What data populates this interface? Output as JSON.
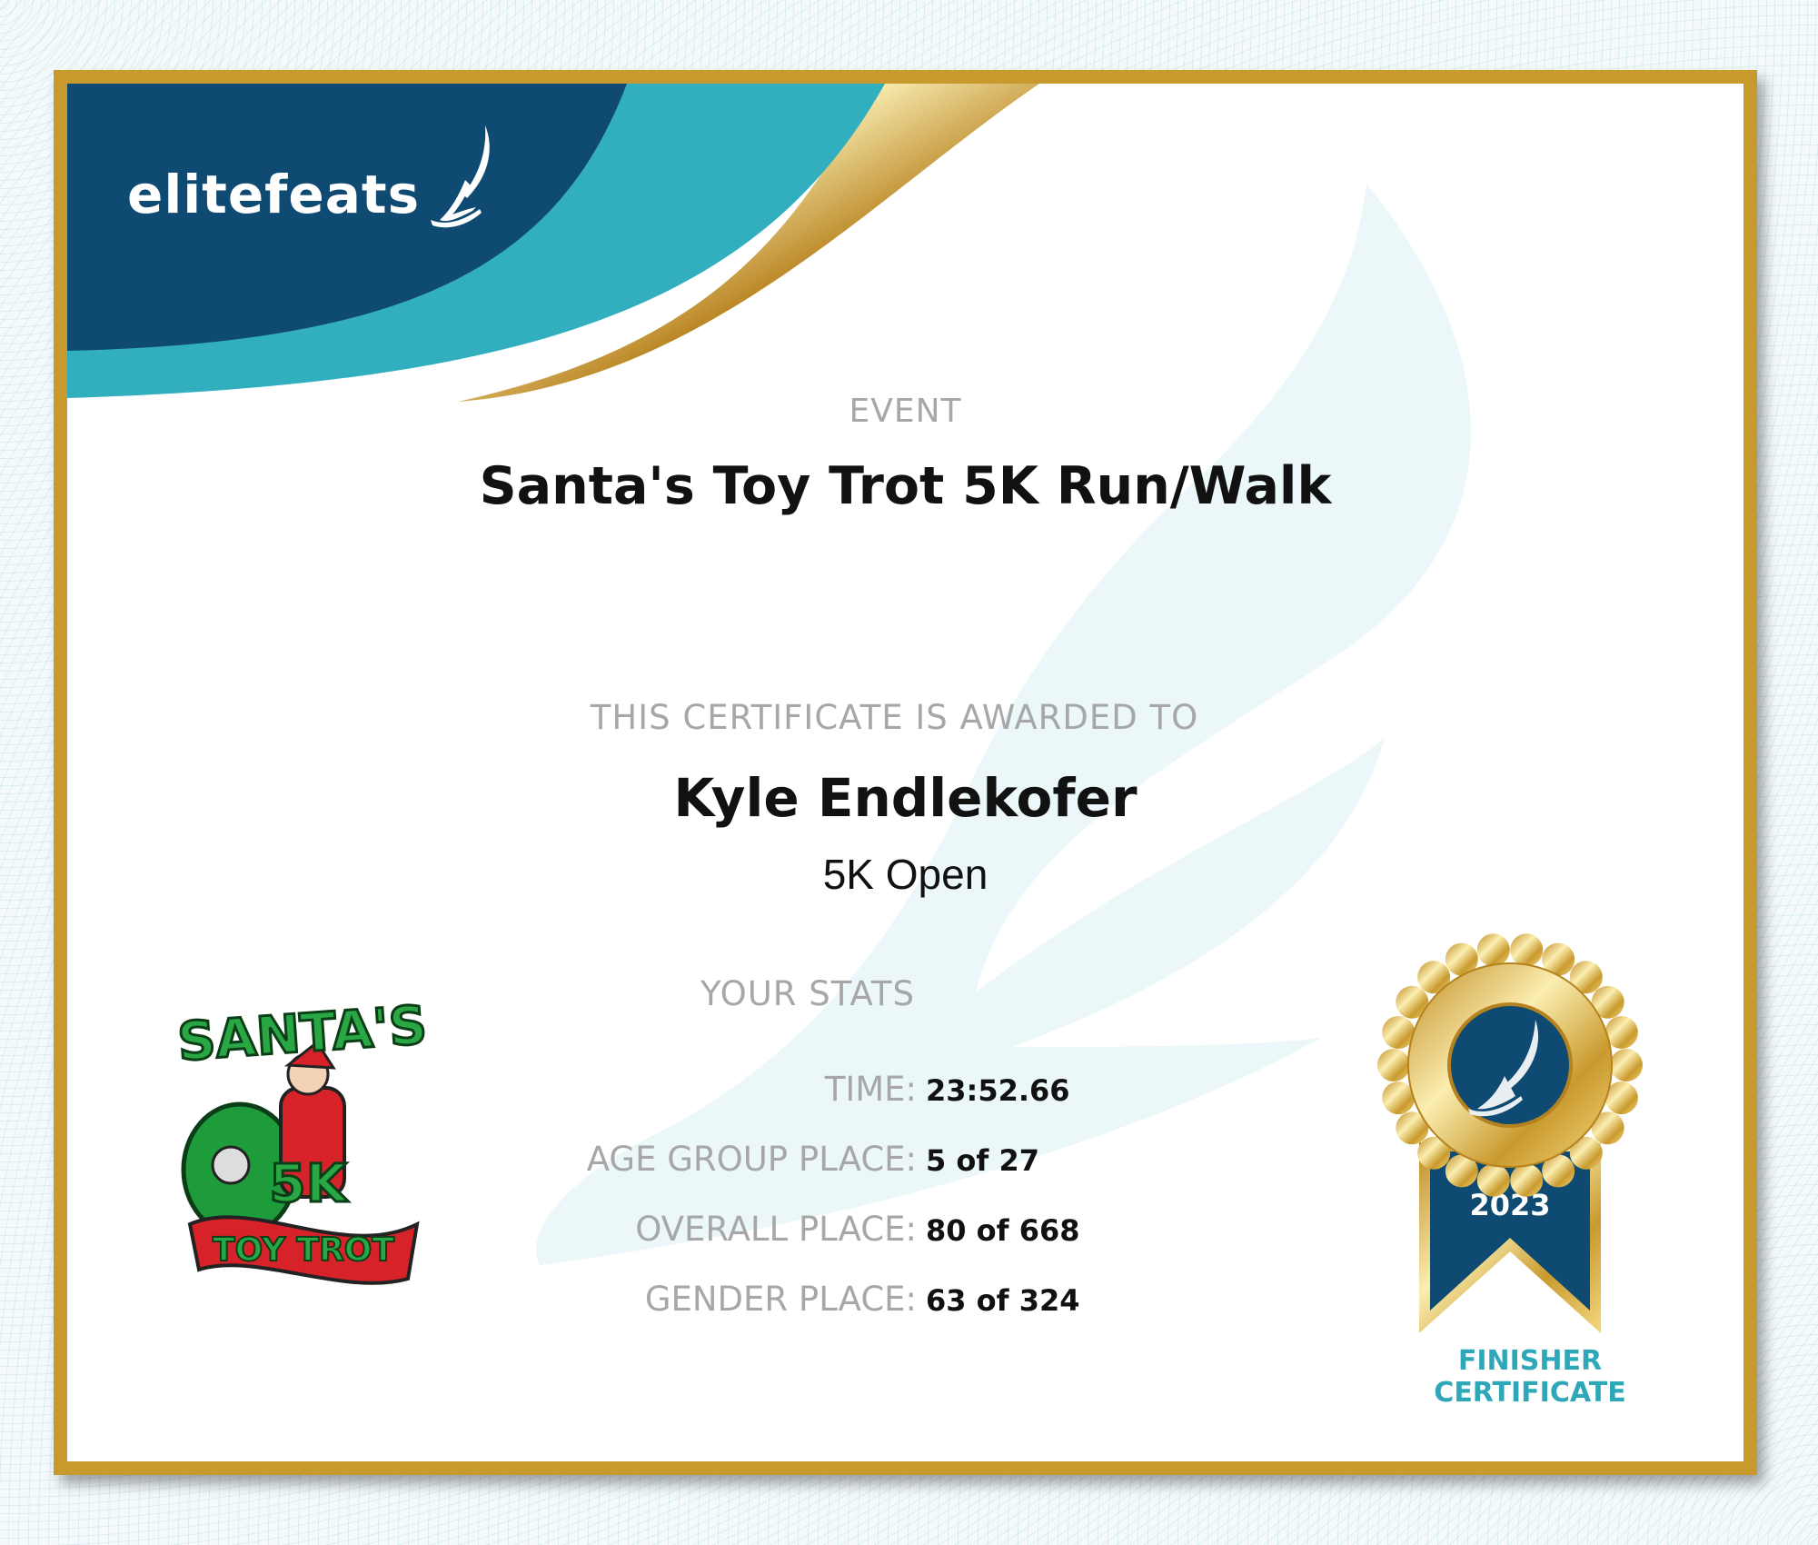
{
  "brand": {
    "logo_text": "elitefeats",
    "colors": {
      "navy": "#0f4a73",
      "teal": "#32afbf",
      "gold": "#c89a2e"
    }
  },
  "event": {
    "label": "EVENT",
    "title": "Santa's Toy Trot 5K Run/Walk"
  },
  "award": {
    "label": "THIS CERTIFICATE IS AWARDED TO",
    "name": "Kyle Endlekofer",
    "division": "5K Open"
  },
  "stats": {
    "label": "YOUR STATS",
    "rows": [
      {
        "key": "TIME:",
        "value": "23:52.66"
      },
      {
        "key": "AGE GROUP PLACE:",
        "value": "5 of 27"
      },
      {
        "key": "OVERALL PLACE:",
        "value": "80 of 668"
      },
      {
        "key": "GENDER PLACE:",
        "value": "63 of 324"
      }
    ]
  },
  "event_logo": {
    "line1": "SANTA'S",
    "line2": "5K",
    "line3": "TOY TROT"
  },
  "medal": {
    "year": "2023",
    "caption_line1": "FINISHER",
    "caption_line2": "CERTIFICATE"
  }
}
